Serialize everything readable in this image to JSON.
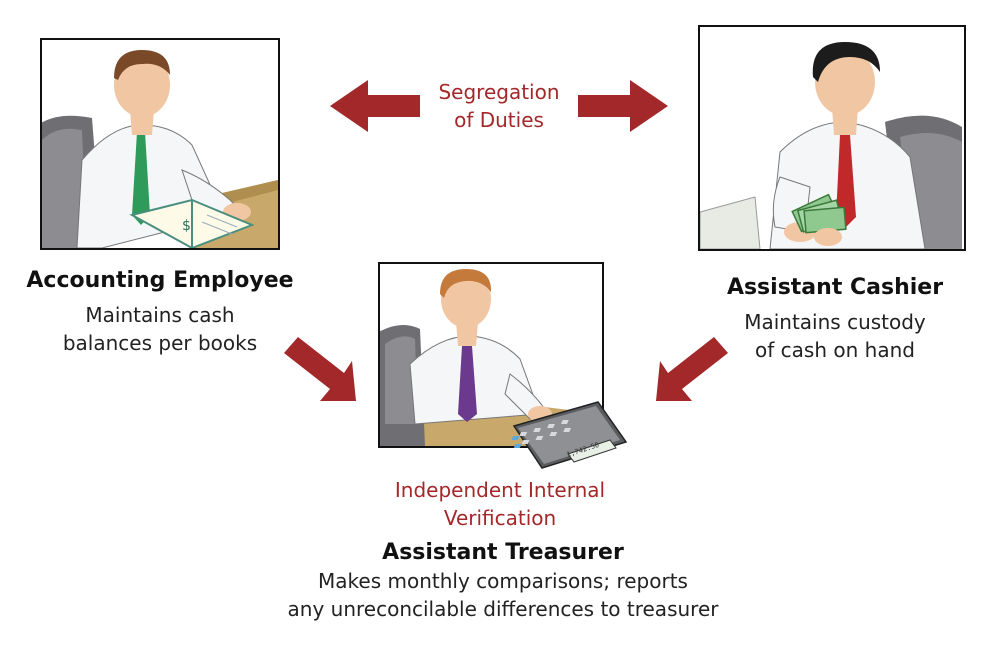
{
  "segregation": {
    "line1": "Segregation",
    "line2": "of Duties"
  },
  "accounting": {
    "title": "Accounting Employee",
    "desc1": "Maintains cash",
    "desc2": "balances per books"
  },
  "cashier": {
    "title": "Assistant Cashier",
    "desc1": "Maintains custody",
    "desc2": "of cash on hand"
  },
  "verification": {
    "line1": "Independent Internal",
    "line2": "Verification"
  },
  "treasurer": {
    "title": "Assistant Treasurer",
    "desc1": "Makes monthly comparisons; reports",
    "desc2": "any unreconcilable differences to treasurer"
  },
  "calculator": {
    "display": "1,742.50"
  },
  "colors": {
    "arrow": "#a3282a",
    "accent_text": "#a3282a",
    "green_tie": "#2e9b5a",
    "red_tie": "#c0282a",
    "purple_tie": "#6b3a8e"
  }
}
